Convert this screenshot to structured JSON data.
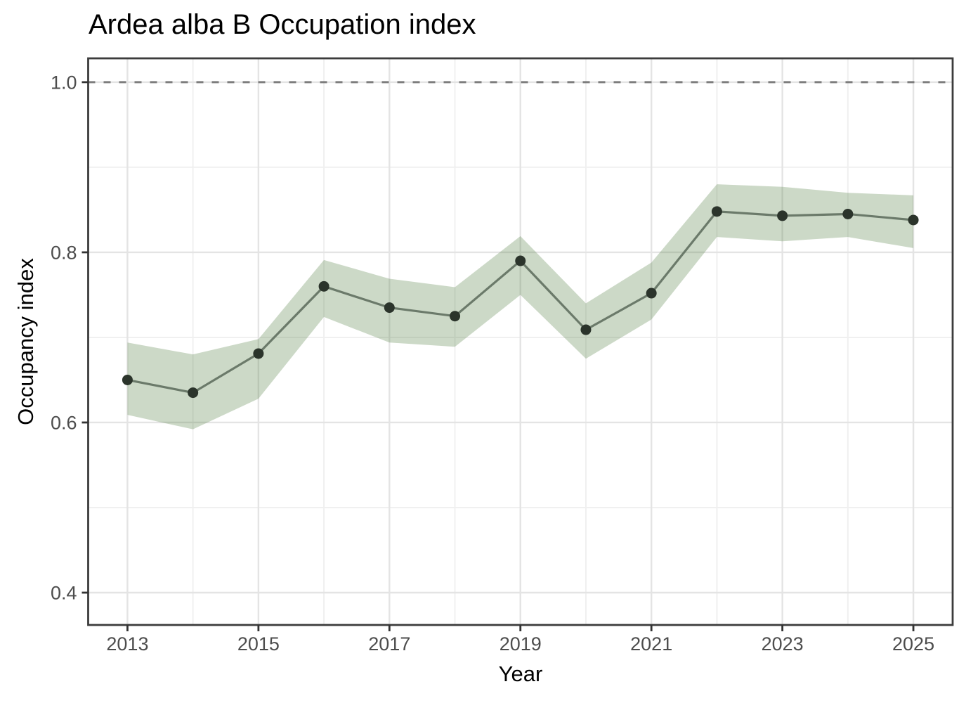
{
  "chart_data": {
    "type": "line",
    "title": "Ardea alba B Occupation index",
    "xlabel": "Year",
    "ylabel": "Occupancy index",
    "x": [
      2013,
      2014,
      2015,
      2016,
      2017,
      2018,
      2019,
      2020,
      2021,
      2022,
      2023,
      2024,
      2025
    ],
    "series": [
      {
        "name": "occupancy-index",
        "values": [
          0.65,
          0.635,
          0.681,
          0.76,
          0.735,
          0.725,
          0.79,
          0.709,
          0.752,
          0.848,
          0.843,
          0.845,
          0.838
        ]
      },
      {
        "name": "ci-lower",
        "values": [
          0.609,
          0.592,
          0.628,
          0.724,
          0.694,
          0.689,
          0.75,
          0.675,
          0.721,
          0.818,
          0.813,
          0.818,
          0.805
        ]
      },
      {
        "name": "ci-upper",
        "values": [
          0.694,
          0.68,
          0.698,
          0.791,
          0.769,
          0.759,
          0.819,
          0.74,
          0.788,
          0.88,
          0.877,
          0.87,
          0.867
        ]
      }
    ],
    "reference_line": {
      "y": 1.0,
      "style": "dashed"
    },
    "x_ticks": [
      2013,
      2015,
      2017,
      2019,
      2021,
      2023,
      2025
    ],
    "x_tick_labels": [
      "2013",
      "2015",
      "2017",
      "2019",
      "2021",
      "2023",
      "2025"
    ],
    "x_minor_ticks": [
      2014,
      2016,
      2018,
      2020,
      2022,
      2024
    ],
    "y_ticks": [
      0.4,
      0.6,
      0.8,
      1.0
    ],
    "y_tick_labels": [
      "0.4",
      "0.6",
      "0.8",
      "1.0"
    ],
    "y_minor_ticks": [
      0.5,
      0.7,
      0.9
    ],
    "xlim": [
      2012.4,
      2025.6
    ],
    "ylim": [
      0.362,
      1.028
    ],
    "grid": true,
    "legend": false,
    "colors": {
      "ribbon_fill": "rgb(85,130,70)",
      "ribbon_opacity": "0.3",
      "line": "#6b7a6a",
      "point": "#2b342b",
      "reference_line": "#7d7d7d",
      "grid_major": "#e4e4e4",
      "grid_minor": "#f0f0f0",
      "panel_border": "#3c3c3c",
      "tick_mark": "#333333",
      "tick_label": "#4d4d4d"
    }
  }
}
